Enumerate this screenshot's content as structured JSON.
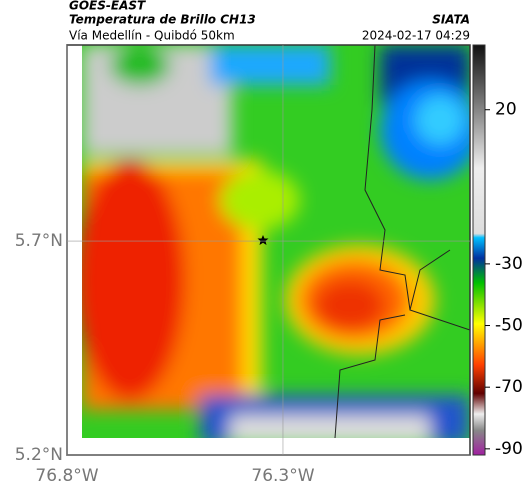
{
  "header": {
    "title": "GOES-EAST",
    "subtitle": "Temperatura de Brillo CH13",
    "region": "Vía Medellín - Quibdó 50km",
    "source": "SIATA",
    "datetime": "2024-02-17 04:29"
  },
  "map": {
    "lat_range": [
      5.2,
      6.158
    ],
    "lon_range": [
      -76.8,
      -75.867
    ],
    "lat_ticks": [
      {
        "value": 5.7,
        "label": "5.7°N"
      },
      {
        "value": 5.2,
        "label": "5.2°N"
      }
    ],
    "lon_ticks": [
      {
        "value": -76.8,
        "label": "76.8°W"
      },
      {
        "value": -76.3,
        "label": "76.3°W"
      }
    ]
  },
  "colorbar": {
    "range": [
      -92,
      41
    ],
    "ticks": [
      20,
      -30,
      -50,
      -70,
      -90
    ]
  }
}
